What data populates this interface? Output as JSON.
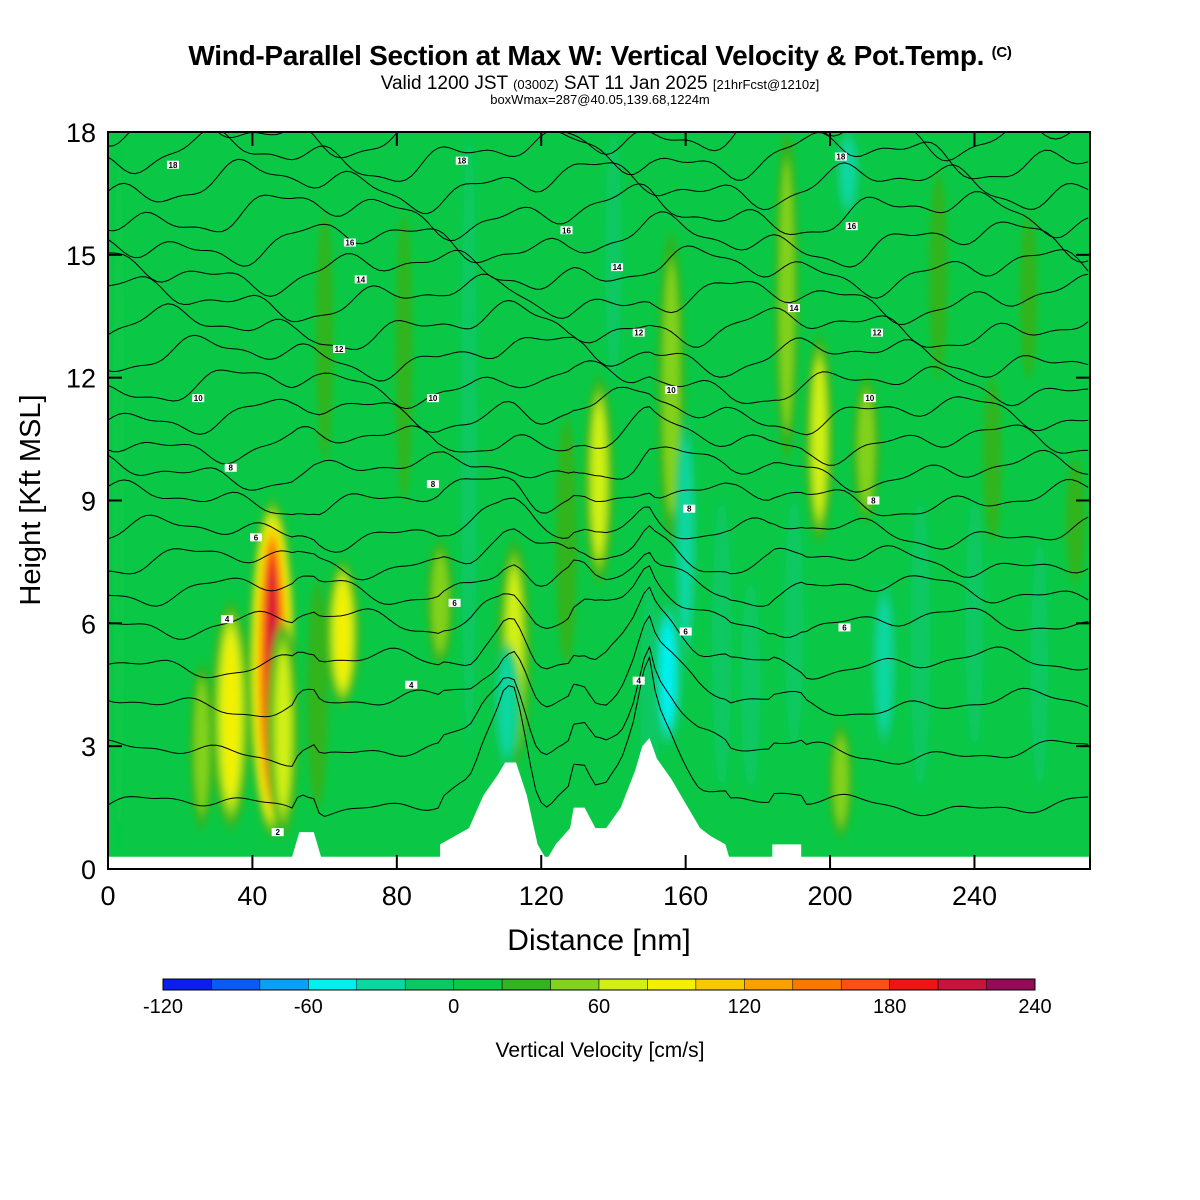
{
  "header": {
    "title": "Wind-Parallel Section at Max W: Vertical Velocity & Pot.Temp.",
    "title_suffix": "(C)",
    "subtitle_part1": "Valid 1200 JST",
    "subtitle_part2": "(0300Z)",
    "subtitle_part3": "SAT 11 Jan 2025",
    "subtitle_part4": "[21hrFcst@1210z]",
    "subsubtitle": "boxWmax=287@40.05,139.68,1224m"
  },
  "chart_data": {
    "type": "heatmap",
    "xlabel": "Distance [nm]",
    "ylabel": "Height [Kft MSL]",
    "xlim": [
      0,
      272
    ],
    "ylim": [
      0,
      18
    ],
    "xticks": [
      0,
      40,
      80,
      120,
      160,
      200,
      240
    ],
    "yticks": [
      0,
      3,
      6,
      9,
      12,
      15,
      18
    ],
    "colorbar": {
      "label": "Vertical Velocity [cm/s]",
      "tick_labels": [
        "-120",
        "-60",
        "0",
        "60",
        "120",
        "180",
        "240"
      ],
      "tick_values": [
        -120,
        -60,
        0,
        60,
        120,
        180,
        240
      ],
      "levels": [
        -120,
        -100,
        -80,
        -60,
        -40,
        -20,
        0,
        20,
        40,
        60,
        80,
        100,
        120,
        140,
        160,
        180,
        200,
        220,
        240
      ],
      "colors": [
        "#0a1ef0",
        "#0a5af5",
        "#0aa0f5",
        "#00f0f0",
        "#0ad8a0",
        "#0ac864",
        "#0ac846",
        "#32b41e",
        "#82d21e",
        "#d2f014",
        "#f5f000",
        "#fac800",
        "#fca000",
        "#fa7800",
        "#fa5014",
        "#f01414",
        "#c8143c",
        "#960a5a"
      ]
    },
    "background_color": "#0ac846",
    "vertical_velocity_features": [
      {
        "x": 3,
        "y0": 0.3,
        "y1": 18,
        "w": 4
      },
      {
        "x": 34,
        "y0": 1.0,
        "y1": 6.5,
        "w": 95
      },
      {
        "x": 45.5,
        "y0": 0.8,
        "y1": 9.0,
        "w": 210
      },
      {
        "x": 48.5,
        "y0": 0.8,
        "y1": 6.0,
        "w": 70
      },
      {
        "x": 26,
        "y0": 1.0,
        "y1": 5.0,
        "w": 45
      },
      {
        "x": 58,
        "y0": 1.5,
        "y1": 7.0,
        "w": 35
      },
      {
        "x": 65,
        "y0": 4.0,
        "y1": 7.5,
        "w": 80
      },
      {
        "x": 92,
        "y0": 5.0,
        "y1": 8.0,
        "w": 55
      },
      {
        "x": 112.5,
        "y0": 2.5,
        "y1": 8.0,
        "w": 75
      },
      {
        "x": 110.5,
        "y0": 2.5,
        "y1": 5.5,
        "w": -55
      },
      {
        "x": 127,
        "y0": 5.0,
        "y1": 11.0,
        "w": 35
      },
      {
        "x": 136,
        "y0": 7.0,
        "y1": 12.0,
        "w": 65
      },
      {
        "x": 156,
        "y0": 8.0,
        "y1": 15.5,
        "w": 55
      },
      {
        "x": 155,
        "y0": 3.0,
        "y1": 6.5,
        "w": -70
      },
      {
        "x": 160,
        "y0": 5.0,
        "y1": 11.0,
        "w": -40
      },
      {
        "x": 150,
        "y0": 1.0,
        "y1": 7.0,
        "w": -25
      },
      {
        "x": 170,
        "y0": 2.0,
        "y1": 9.0,
        "w": -30
      },
      {
        "x": 178,
        "y0": 2.0,
        "y1": 7.0,
        "w": -30
      },
      {
        "x": 190,
        "y0": 3.0,
        "y1": 9.0,
        "w": -28
      },
      {
        "x": 188,
        "y0": 10.0,
        "y1": 18.0,
        "w": 45
      },
      {
        "x": 197,
        "y0": 8.0,
        "y1": 13.0,
        "w": 60
      },
      {
        "x": 205,
        "y0": 16.0,
        "y1": 18.0,
        "w": -45
      },
      {
        "x": 203,
        "y0": 0.8,
        "y1": 3.5,
        "w": 45
      },
      {
        "x": 210,
        "y0": 8.5,
        "y1": 12.0,
        "w": 55
      },
      {
        "x": 215,
        "y0": 3.0,
        "y1": 7.0,
        "w": -50
      },
      {
        "x": 225,
        "y0": 2.0,
        "y1": 9.0,
        "w": -30
      },
      {
        "x": 240,
        "y0": 3.0,
        "y1": 9.0,
        "w": -25
      },
      {
        "x": 258,
        "y0": 2.0,
        "y1": 8.0,
        "w": -22
      },
      {
        "x": 268,
        "y0": 7.0,
        "y1": 10.0,
        "w": 30
      },
      {
        "x": 245,
        "y0": 8.0,
        "y1": 12.0,
        "w": 25
      },
      {
        "x": 100,
        "y0": 3.0,
        "y1": 18.0,
        "w": -18
      },
      {
        "x": 140,
        "y0": 12.0,
        "y1": 18.0,
        "w": -20
      },
      {
        "x": 60,
        "y0": 10.0,
        "y1": 16.0,
        "w": 22
      },
      {
        "x": 82,
        "y0": 9.0,
        "y1": 16.0,
        "w": 20
      },
      {
        "x": 230,
        "y0": 12.0,
        "y1": 17.0,
        "w": 25
      },
      {
        "x": 255,
        "y0": 12.0,
        "y1": 16.0,
        "w": 22
      }
    ],
    "terrain": [
      [
        0,
        0.3
      ],
      [
        51,
        0.3
      ],
      [
        53,
        0.9
      ],
      [
        57,
        0.9
      ],
      [
        59,
        0.3
      ],
      [
        92,
        0.3
      ],
      [
        92,
        0.6
      ],
      [
        100,
        1.0
      ],
      [
        104,
        1.8
      ],
      [
        108,
        2.3
      ],
      [
        110,
        2.6
      ],
      [
        113,
        2.6
      ],
      [
        116,
        1.8
      ],
      [
        119,
        0.6
      ],
      [
        121,
        0.3
      ],
      [
        122,
        0.3
      ],
      [
        124,
        0.6
      ],
      [
        128,
        1.0
      ],
      [
        129,
        1.5
      ],
      [
        132,
        1.5
      ],
      [
        135,
        1.0
      ],
      [
        138,
        1.0
      ],
      [
        142,
        1.5
      ],
      [
        146,
        2.4
      ],
      [
        148,
        3.0
      ],
      [
        150,
        3.2
      ],
      [
        152,
        2.7
      ],
      [
        156,
        2.2
      ],
      [
        160,
        1.6
      ],
      [
        164,
        1.0
      ],
      [
        167,
        0.8
      ],
      [
        171,
        0.6
      ],
      [
        172,
        0.3
      ],
      [
        184,
        0.3
      ],
      [
        184,
        0.6
      ],
      [
        192,
        0.6
      ],
      [
        192,
        0.3
      ],
      [
        272,
        0.3
      ]
    ],
    "contour_levels_c": [
      2,
      4,
      6,
      8,
      10,
      12,
      14,
      16,
      18
    ],
    "theta_contour_baseline_heights": [
      1.5,
      2.8,
      4.0,
      5.0,
      6.0,
      6.8,
      7.5,
      8.2,
      9.0,
      9.7,
      10.4,
      11.1,
      11.8,
      12.5,
      13.2,
      13.9,
      14.6,
      15.3,
      16.0,
      16.7,
      17.4,
      18.0
    ],
    "contour_labels": [
      {
        "text": "18",
        "x": 18,
        "y": 17.2
      },
      {
        "text": "18",
        "x": 98,
        "y": 17.3
      },
      {
        "text": "18",
        "x": 203,
        "y": 17.4
      },
      {
        "text": "16",
        "x": 67,
        "y": 15.3
      },
      {
        "text": "16",
        "x": 127,
        "y": 15.6
      },
      {
        "text": "16",
        "x": 206,
        "y": 15.7
      },
      {
        "text": "14",
        "x": 70,
        "y": 14.4
      },
      {
        "text": "14",
        "x": 141,
        "y": 14.7
      },
      {
        "text": "14",
        "x": 190,
        "y": 13.7
      },
      {
        "text": "12",
        "x": 64,
        "y": 12.7
      },
      {
        "text": "12",
        "x": 147,
        "y": 13.1
      },
      {
        "text": "12",
        "x": 213,
        "y": 13.1
      },
      {
        "text": "10",
        "x": 25,
        "y": 11.5
      },
      {
        "text": "10",
        "x": 90,
        "y": 11.5
      },
      {
        "text": "10",
        "x": 156,
        "y": 11.7
      },
      {
        "text": "10",
        "x": 211,
        "y": 11.5
      },
      {
        "text": "8",
        "x": 34,
        "y": 9.8
      },
      {
        "text": "8",
        "x": 90,
        "y": 9.4
      },
      {
        "text": "8",
        "x": 161,
        "y": 8.8
      },
      {
        "text": "8",
        "x": 212,
        "y": 9.0
      },
      {
        "text": "6",
        "x": 41,
        "y": 8.1
      },
      {
        "text": "6",
        "x": 96,
        "y": 6.5
      },
      {
        "text": "6",
        "x": 160,
        "y": 5.8
      },
      {
        "text": "6",
        "x": 204,
        "y": 5.9
      },
      {
        "text": "4",
        "x": 33,
        "y": 6.1
      },
      {
        "text": "4",
        "x": 84,
        "y": 4.5
      },
      {
        "text": "4",
        "x": 147,
        "y": 4.6
      },
      {
        "text": "2",
        "x": 47,
        "y": 0.9
      }
    ]
  }
}
